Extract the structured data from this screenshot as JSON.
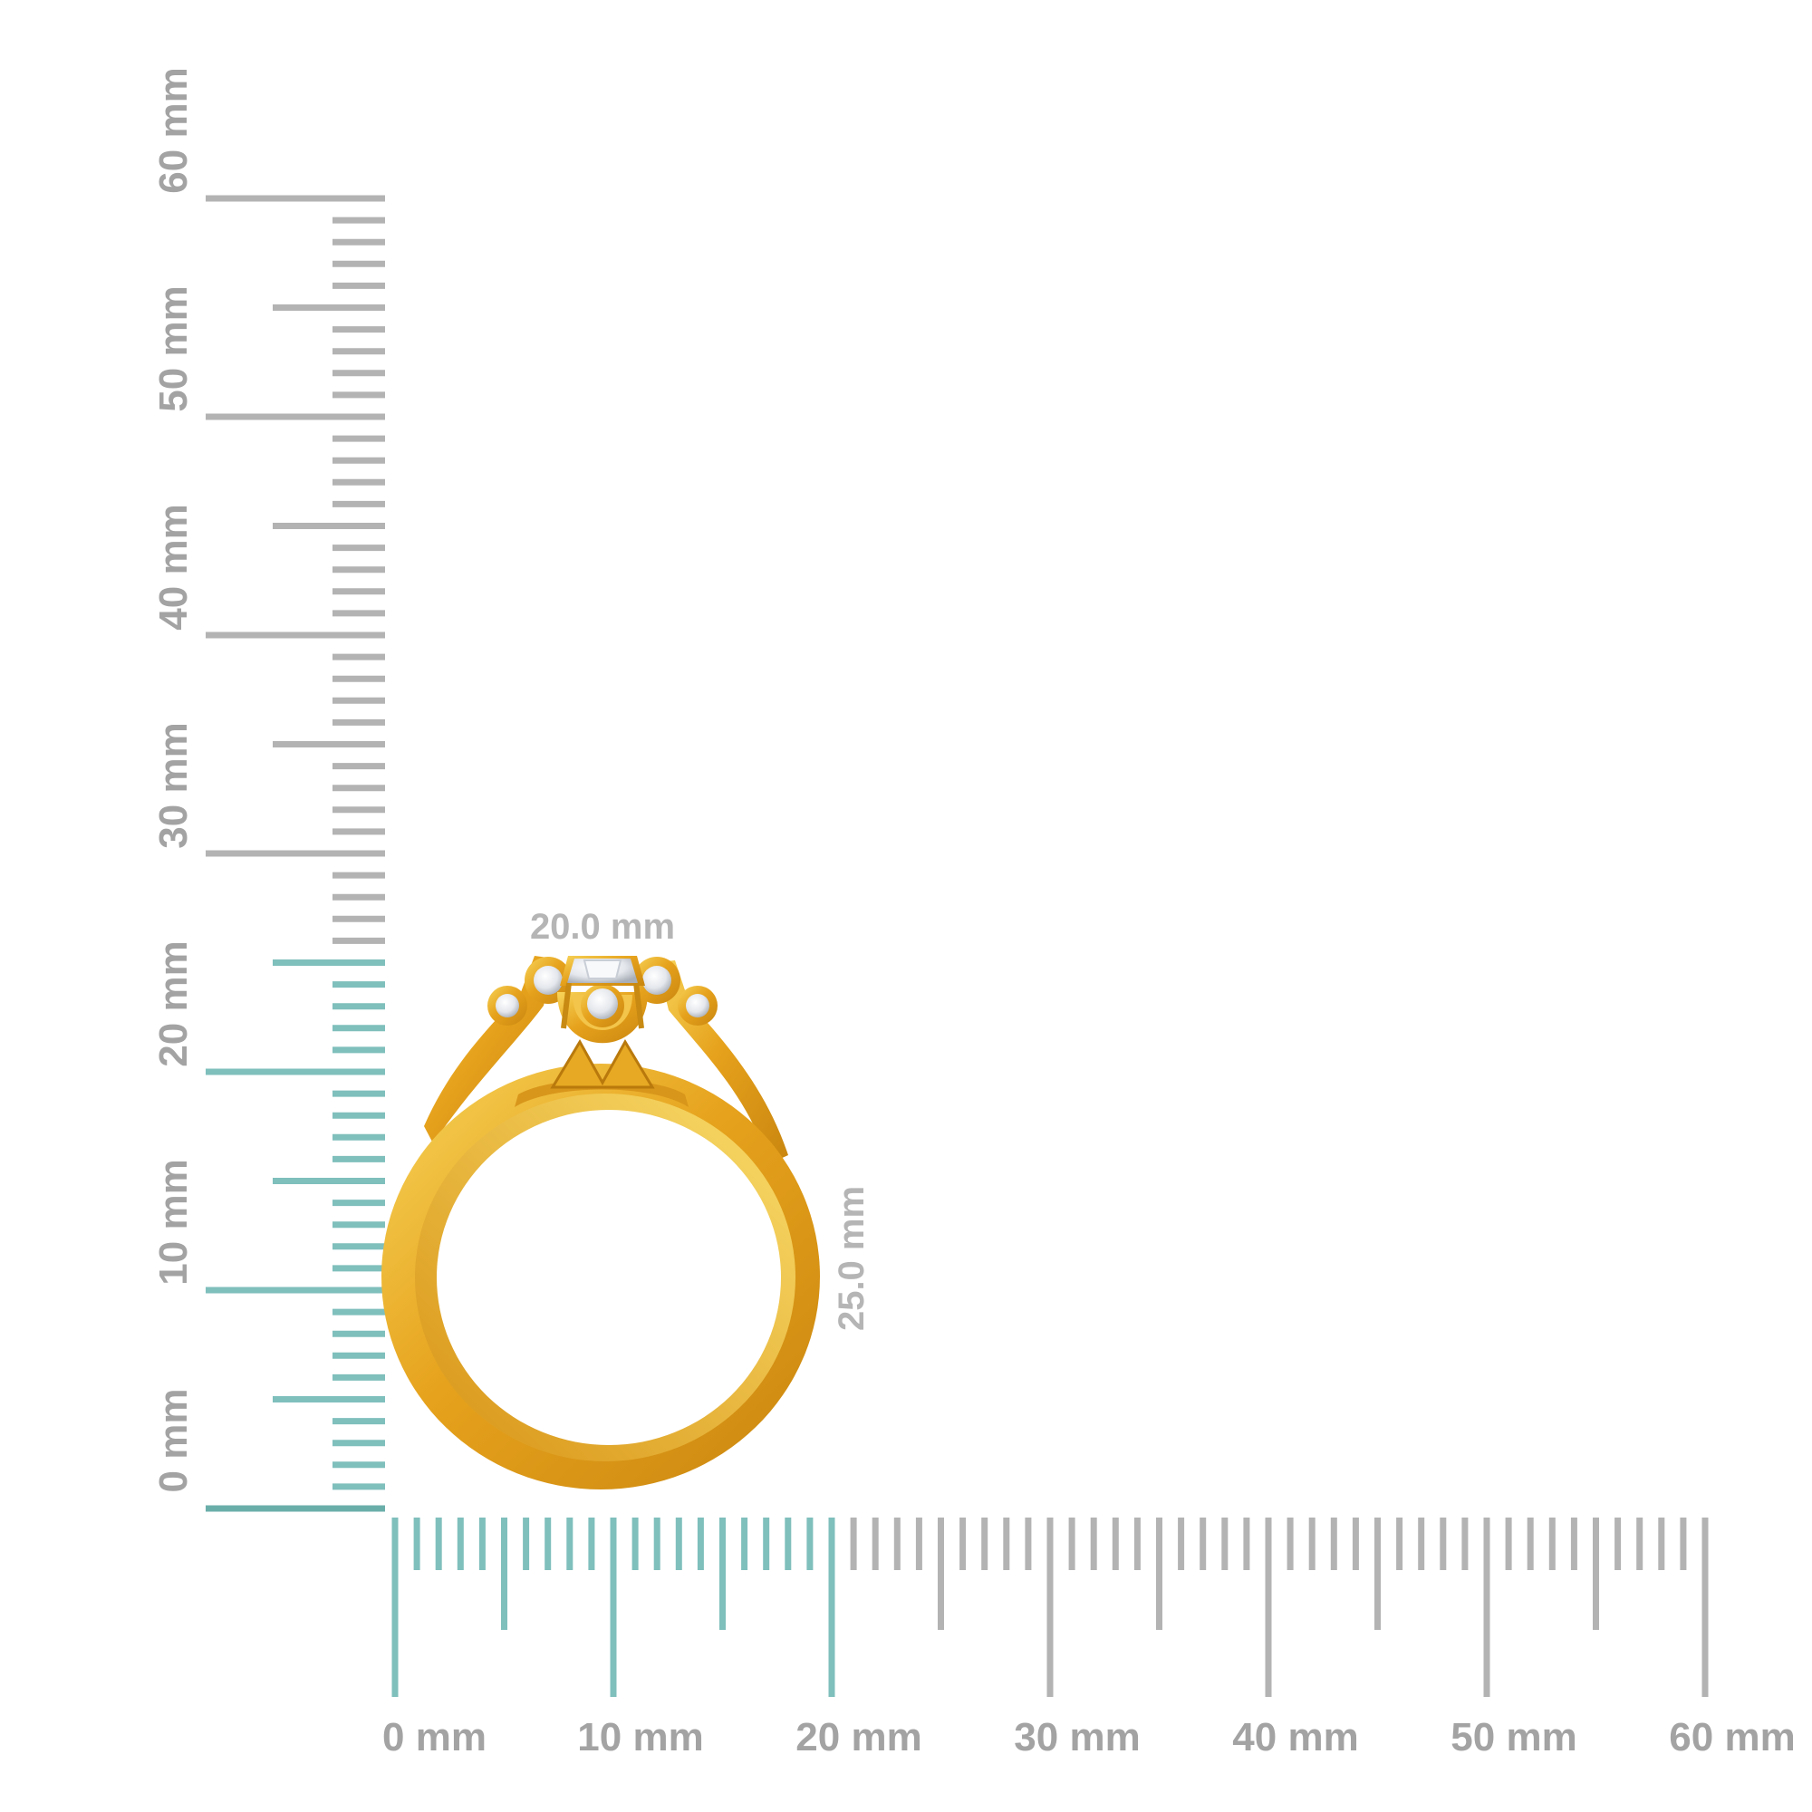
{
  "ruler": {
    "unit_labels": {
      "x": [
        "0 mm",
        "10 mm",
        "20 mm",
        "30 mm",
        "40 mm",
        "50 mm",
        "60 mm"
      ],
      "y": [
        "0 mm",
        "10 mm",
        "20 mm",
        "30 mm",
        "40 mm",
        "50 mm",
        "60 mm"
      ]
    },
    "max_mm": 60,
    "highlight_width_mm": 20,
    "highlight_height_mm": 25,
    "colors": {
      "gray": "#b3b3b3",
      "teal": "#7fbfbc",
      "teal_dark": "#6aaea9"
    }
  },
  "ring": {
    "top_view_width_label": "20.0 mm",
    "height_label": "25.0 mm",
    "metal_color": "#e6a21c",
    "metal_highlight": "#f7cf52",
    "metal_shadow": "#b9790c",
    "stone_color": "#eef0f4"
  }
}
